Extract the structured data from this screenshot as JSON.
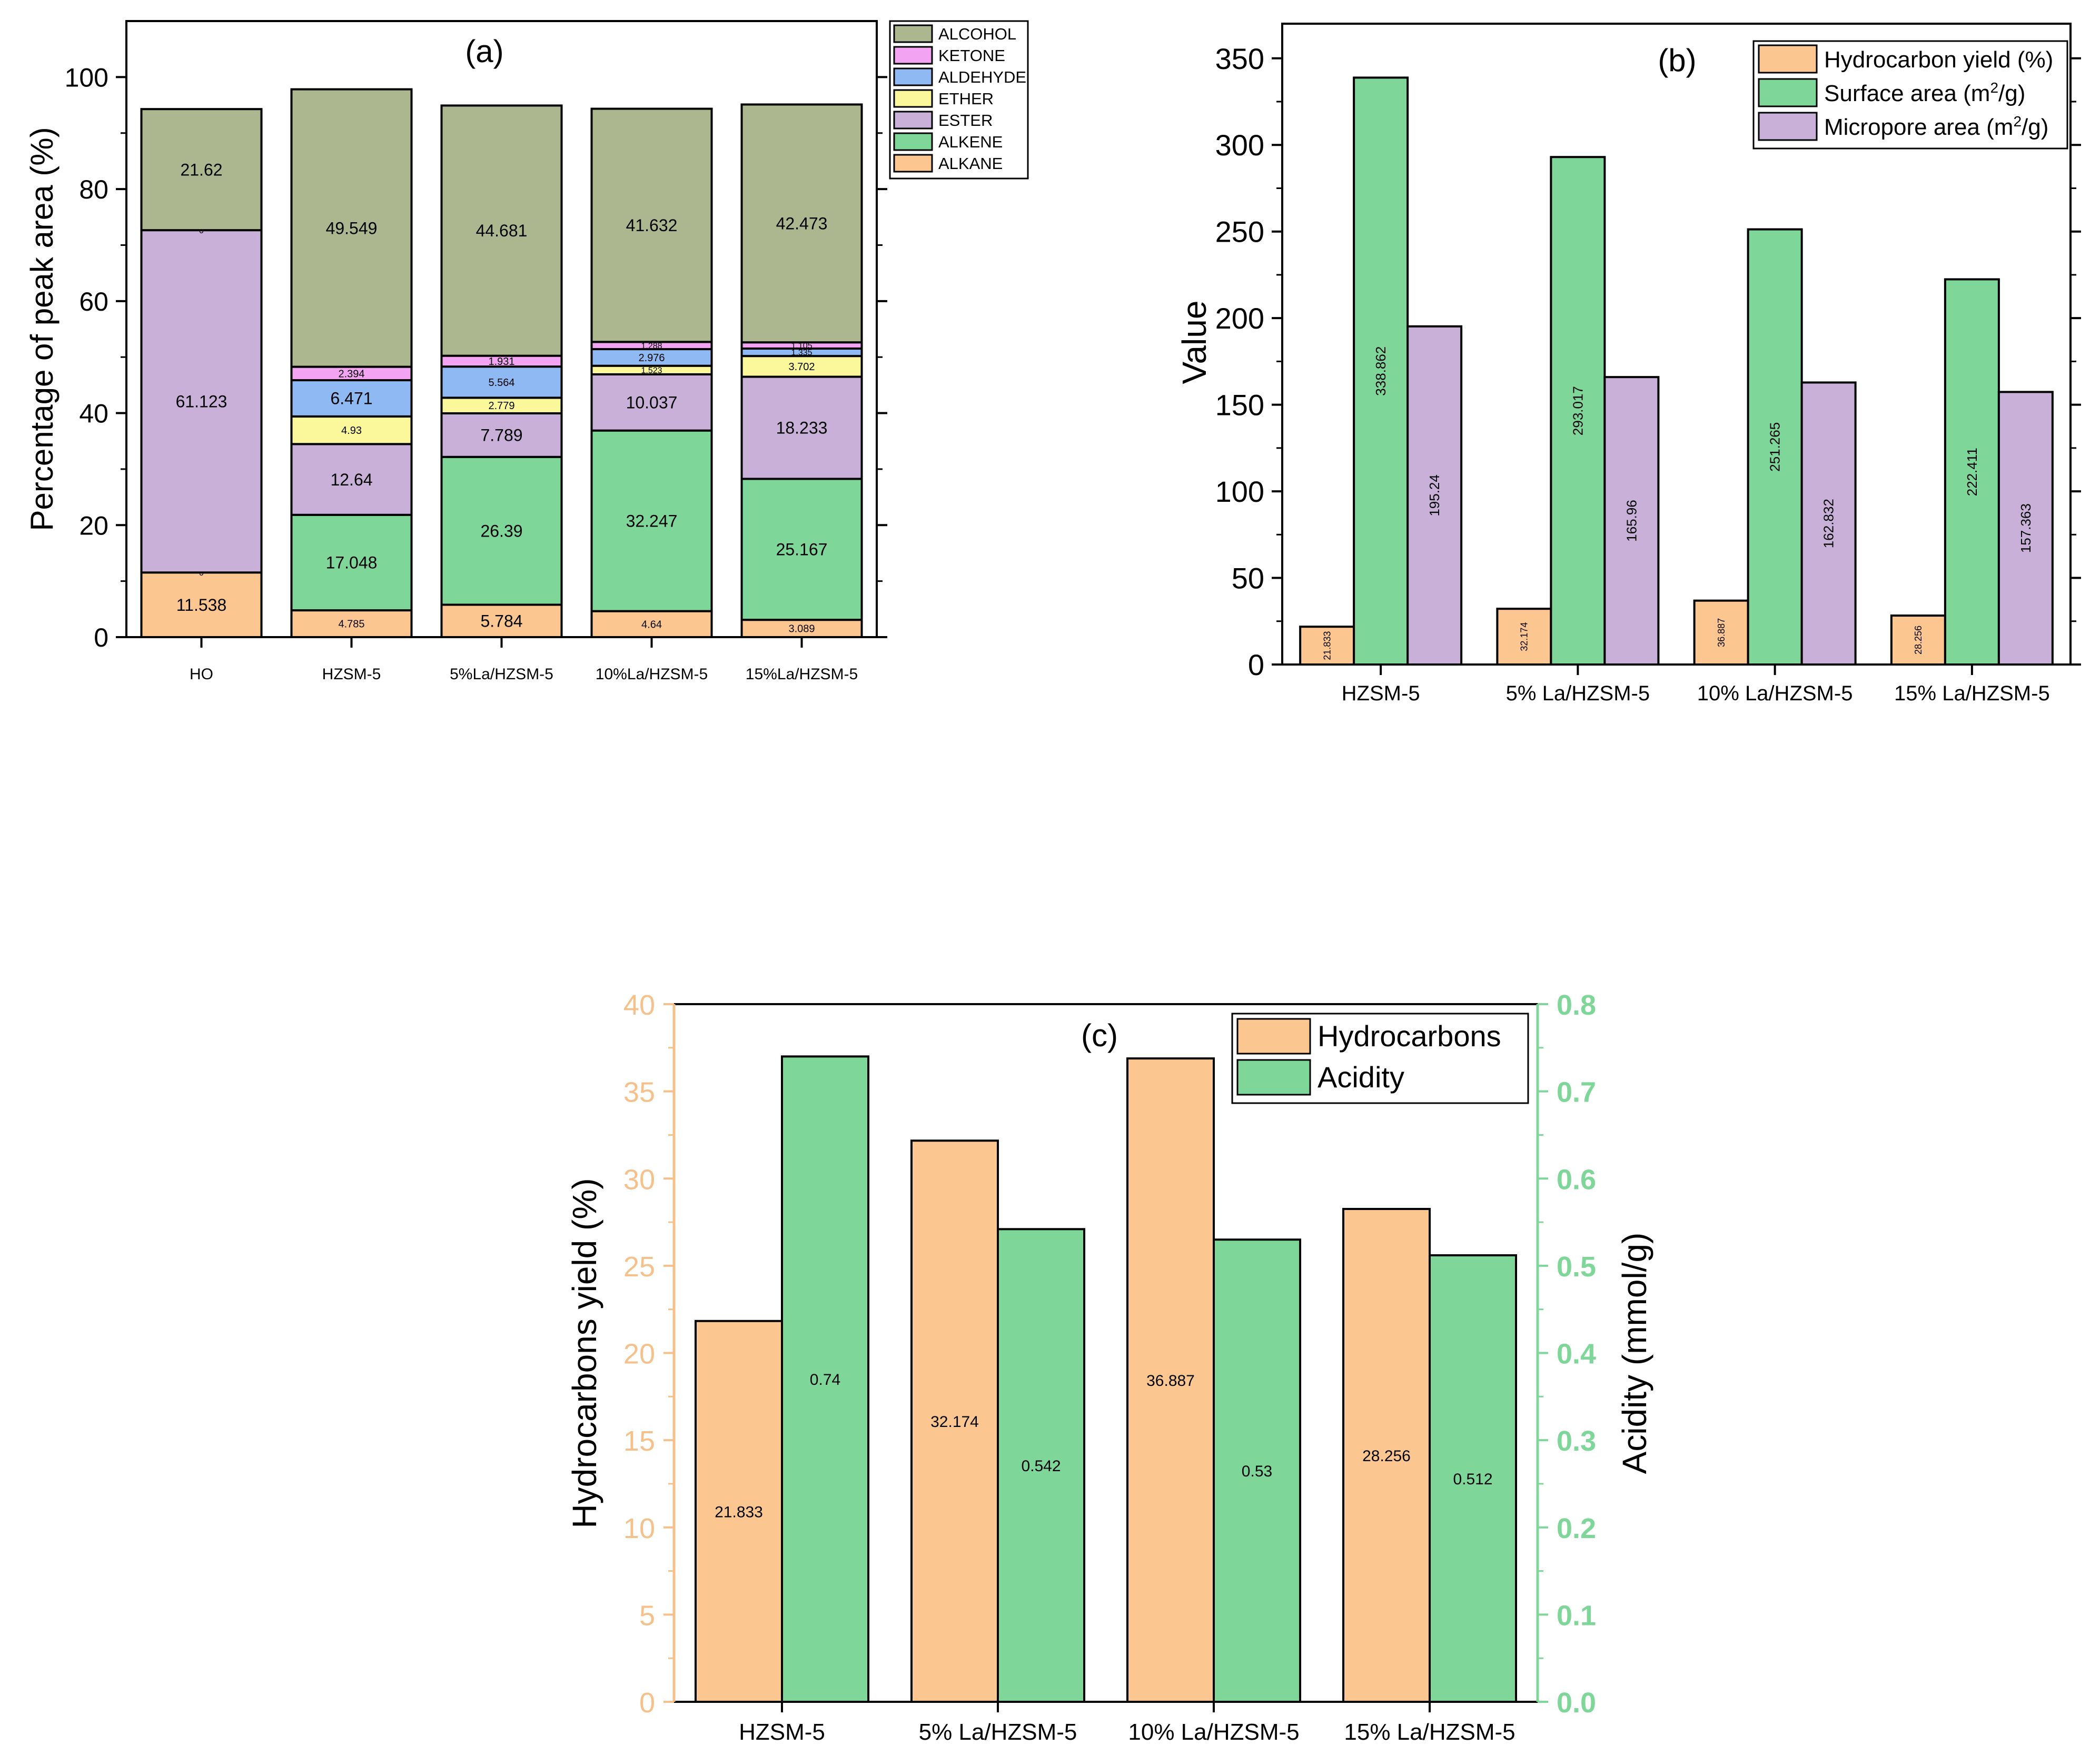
{
  "colors": {
    "alcohol": "#adb78f",
    "ketone": "#f2a4f2",
    "aldehyde": "#8fb9f2",
    "ether": "#fbf89c",
    "ester": "#c8b0d9",
    "alkene": "#7fd699",
    "alkane": "#fcc690",
    "hc_axis": "#f6c08a",
    "acidity_axis": "#7fd699"
  },
  "chart_data": [
    {
      "id": "a",
      "type": "bar",
      "stacked": true,
      "title": "(a)",
      "xlabel": "",
      "ylabel": "Percentage of peak area (%)",
      "ylim": [
        0,
        110
      ],
      "yticks": [
        0,
        20,
        40,
        60,
        80,
        100
      ],
      "legend_position": "top-right",
      "categories": [
        "HO",
        "HZSM-5",
        "5%La/HZSM-5",
        "10%La/HZSM-5",
        "15%La/HZSM-5"
      ],
      "series": [
        {
          "name": "ALKANE",
          "color_key": "alkane",
          "values": [
            11.538,
            4.785,
            5.784,
            4.64,
            3.089
          ],
          "labels": [
            "11.538",
            "4.785",
            "5.784",
            "4.64",
            "3.089"
          ]
        },
        {
          "name": "ALKENE",
          "color_key": "alkene",
          "values": [
            0,
            17.048,
            26.39,
            32.247,
            25.167
          ],
          "labels": [
            "0",
            "17.048",
            "26.39",
            "32.247",
            "25.167"
          ]
        },
        {
          "name": "ESTER",
          "color_key": "ester",
          "values": [
            61.123,
            12.64,
            7.789,
            10.037,
            18.233
          ],
          "labels": [
            "61.123",
            "12.64",
            "7.789",
            "10.037",
            "18.233"
          ]
        },
        {
          "name": "ETHER",
          "color_key": "ether",
          "values": [
            0,
            4.93,
            2.779,
            1.523,
            3.702
          ],
          "labels": [
            "",
            "4.93",
            "2.779",
            "1.523",
            "3.702"
          ]
        },
        {
          "name": "ALDEHYDE",
          "color_key": "aldehyde",
          "values": [
            0,
            6.471,
            5.564,
            2.976,
            1.335
          ],
          "labels": [
            "",
            "6.471",
            "5.564",
            "2.976",
            "1.335"
          ]
        },
        {
          "name": "KETONE",
          "color_key": "ketone",
          "values": [
            0,
            2.394,
            1.931,
            1.288,
            1.105
          ],
          "labels": [
            "0",
            "2.394",
            "1.931",
            "1.288",
            "1.105"
          ]
        },
        {
          "name": "ALCOHOL",
          "color_key": "alcohol",
          "values": [
            21.62,
            49.549,
            44.681,
            41.632,
            42.473
          ],
          "labels": [
            "21.62",
            "49.549",
            "44.681",
            "41.632",
            "42.473"
          ]
        }
      ],
      "legend_order": [
        "ALCOHOL",
        "KETONE",
        "ALDEHYDE",
        "ETHER",
        "ESTER",
        "ALKENE",
        "ALKANE"
      ]
    },
    {
      "id": "b",
      "type": "bar",
      "title": "(b)",
      "xlabel": "",
      "ylabel": "Value",
      "ylim": [
        0,
        370
      ],
      "yticks": [
        0,
        50,
        100,
        150,
        200,
        250,
        300,
        350
      ],
      "legend_position": "top-right",
      "categories": [
        "HZSM-5",
        "5% La/HZSM-5",
        "10% La/HZSM-5",
        "15% La/HZSM-5"
      ],
      "series": [
        {
          "name": "Hydrocarbon yield (%)",
          "legend_text": "Hydrocarbon yield (%)",
          "color_key": "alkane",
          "values": [
            21.833,
            32.174,
            36.887,
            28.256
          ],
          "labels": [
            "21.833",
            "32.174",
            "36.887",
            "28.256"
          ]
        },
        {
          "name": "Surface area (m2/g)",
          "legend_text": "Surface area (m",
          "legend_sup": "2",
          "legend_tail": "/g)",
          "color_key": "alkene",
          "values": [
            338.862,
            293.017,
            251.265,
            222.411
          ],
          "labels": [
            "338.862",
            "293.017",
            "251.265",
            "222.411"
          ]
        },
        {
          "name": "Micropore area (m2/g)",
          "legend_text": "Micropore area (m",
          "legend_sup": "2",
          "legend_tail": "/g)",
          "color_key": "ester",
          "values": [
            195.24,
            165.96,
            162.832,
            157.363
          ],
          "labels": [
            "195.24",
            "165.96",
            "162.832",
            "157.363"
          ]
        }
      ]
    },
    {
      "id": "c",
      "type": "bar",
      "title": "(c)",
      "xlabel": "",
      "ylabel": "Hydrocarbons yield (%)",
      "ylabel_right": "Acidity (mmol/g)",
      "ylim": [
        0,
        40
      ],
      "yticks": [
        0,
        5,
        10,
        15,
        20,
        25,
        30,
        35,
        40
      ],
      "ylim_right": [
        0,
        0.8
      ],
      "yticks_right": [
        "0.0",
        "0.1",
        "0.2",
        "0.3",
        "0.4",
        "0.5",
        "0.6",
        "0.7",
        "0.8"
      ],
      "legend_position": "top-right",
      "categories": [
        "HZSM-5",
        "5% La/HZSM-5",
        "10% La/HZSM-5",
        "15% La/HZSM-5"
      ],
      "series": [
        {
          "name": "Hydrocarbons",
          "axis": "left",
          "color_key": "alkane",
          "values": [
            21.833,
            32.174,
            36.887,
            28.256
          ],
          "labels": [
            "21.833",
            "32.174",
            "36.887",
            "28.256"
          ]
        },
        {
          "name": "Acidity",
          "axis": "right",
          "color_key": "alkene",
          "values": [
            0.74,
            0.542,
            0.53,
            0.512
          ],
          "labels": [
            "0.74",
            "0.542",
            "0.53",
            "0.512"
          ]
        }
      ]
    }
  ]
}
